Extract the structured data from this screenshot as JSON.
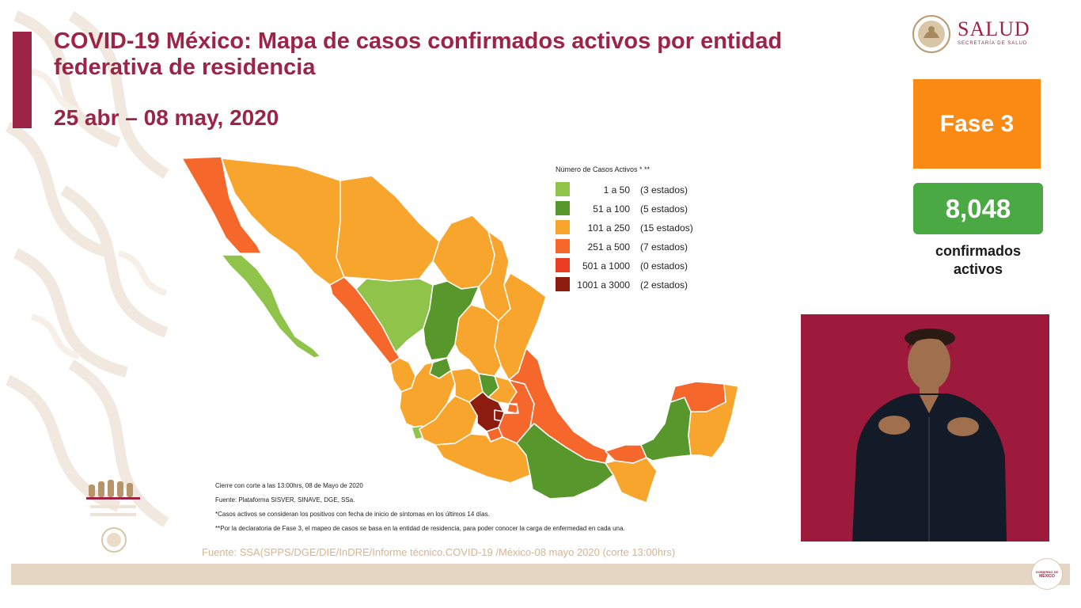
{
  "header": {
    "title": "COVID-19 México: Mapa de casos confirmados activos por entidad federativa de residencia",
    "date_range": "25 abr – 08 may, 2020"
  },
  "logo": {
    "name": "SALUD",
    "subtitle": "SECRETARÍA DE SALUD"
  },
  "stats": {
    "phase": "Fase 3",
    "count": "8,048",
    "count_label": "confirmados activos"
  },
  "colors": {
    "brand": "#9c2447",
    "phase": "#fb8a14",
    "count": "#4aa943"
  },
  "legend": {
    "title": "Número de Casos Activos * **",
    "items": [
      {
        "range": "1 a 50",
        "count": "(3 estados)",
        "color": "#8fc34a"
      },
      {
        "range": "51 a 100",
        "count": "(5 estados)",
        "color": "#57972b"
      },
      {
        "range": "101 a 250",
        "count": "(15 estados)",
        "color": "#f8a52d"
      },
      {
        "range": "251 a 500",
        "count": "(7 estados)",
        "color": "#f5672a"
      },
      {
        "range": "501 a 1000",
        "count": "(0 estados)",
        "color": "#ea3d23"
      },
      {
        "range": "1001 a 3000",
        "count": "(2 estados)",
        "color": "#8c1d0e"
      }
    ]
  },
  "notes": [
    "Cierre con corte a las 13:00hrs, 08 de Mayo de 2020",
    "Fuente: Plataforma SISVER, SINAVE, DGE, SSa.",
    "*Casos activos se consideran los positivos con fecha de inicio de síntomas en los últimos 14 días.",
    "**Por la declaratoria de Fase 3, el mapeo de casos se basa en la entidad de residencia, para poder conocer la carga de enfermedad en cada una."
  ],
  "source": "Fuente: SSA(SPPS/DGE/DIE/InDRE/Informe técnico.COVID-19 /México-08 mayo 2020 (corte 13:00hrs)",
  "footer_seal": {
    "line1": "GOBIERNO DE",
    "line2": "MÉXICO"
  }
}
